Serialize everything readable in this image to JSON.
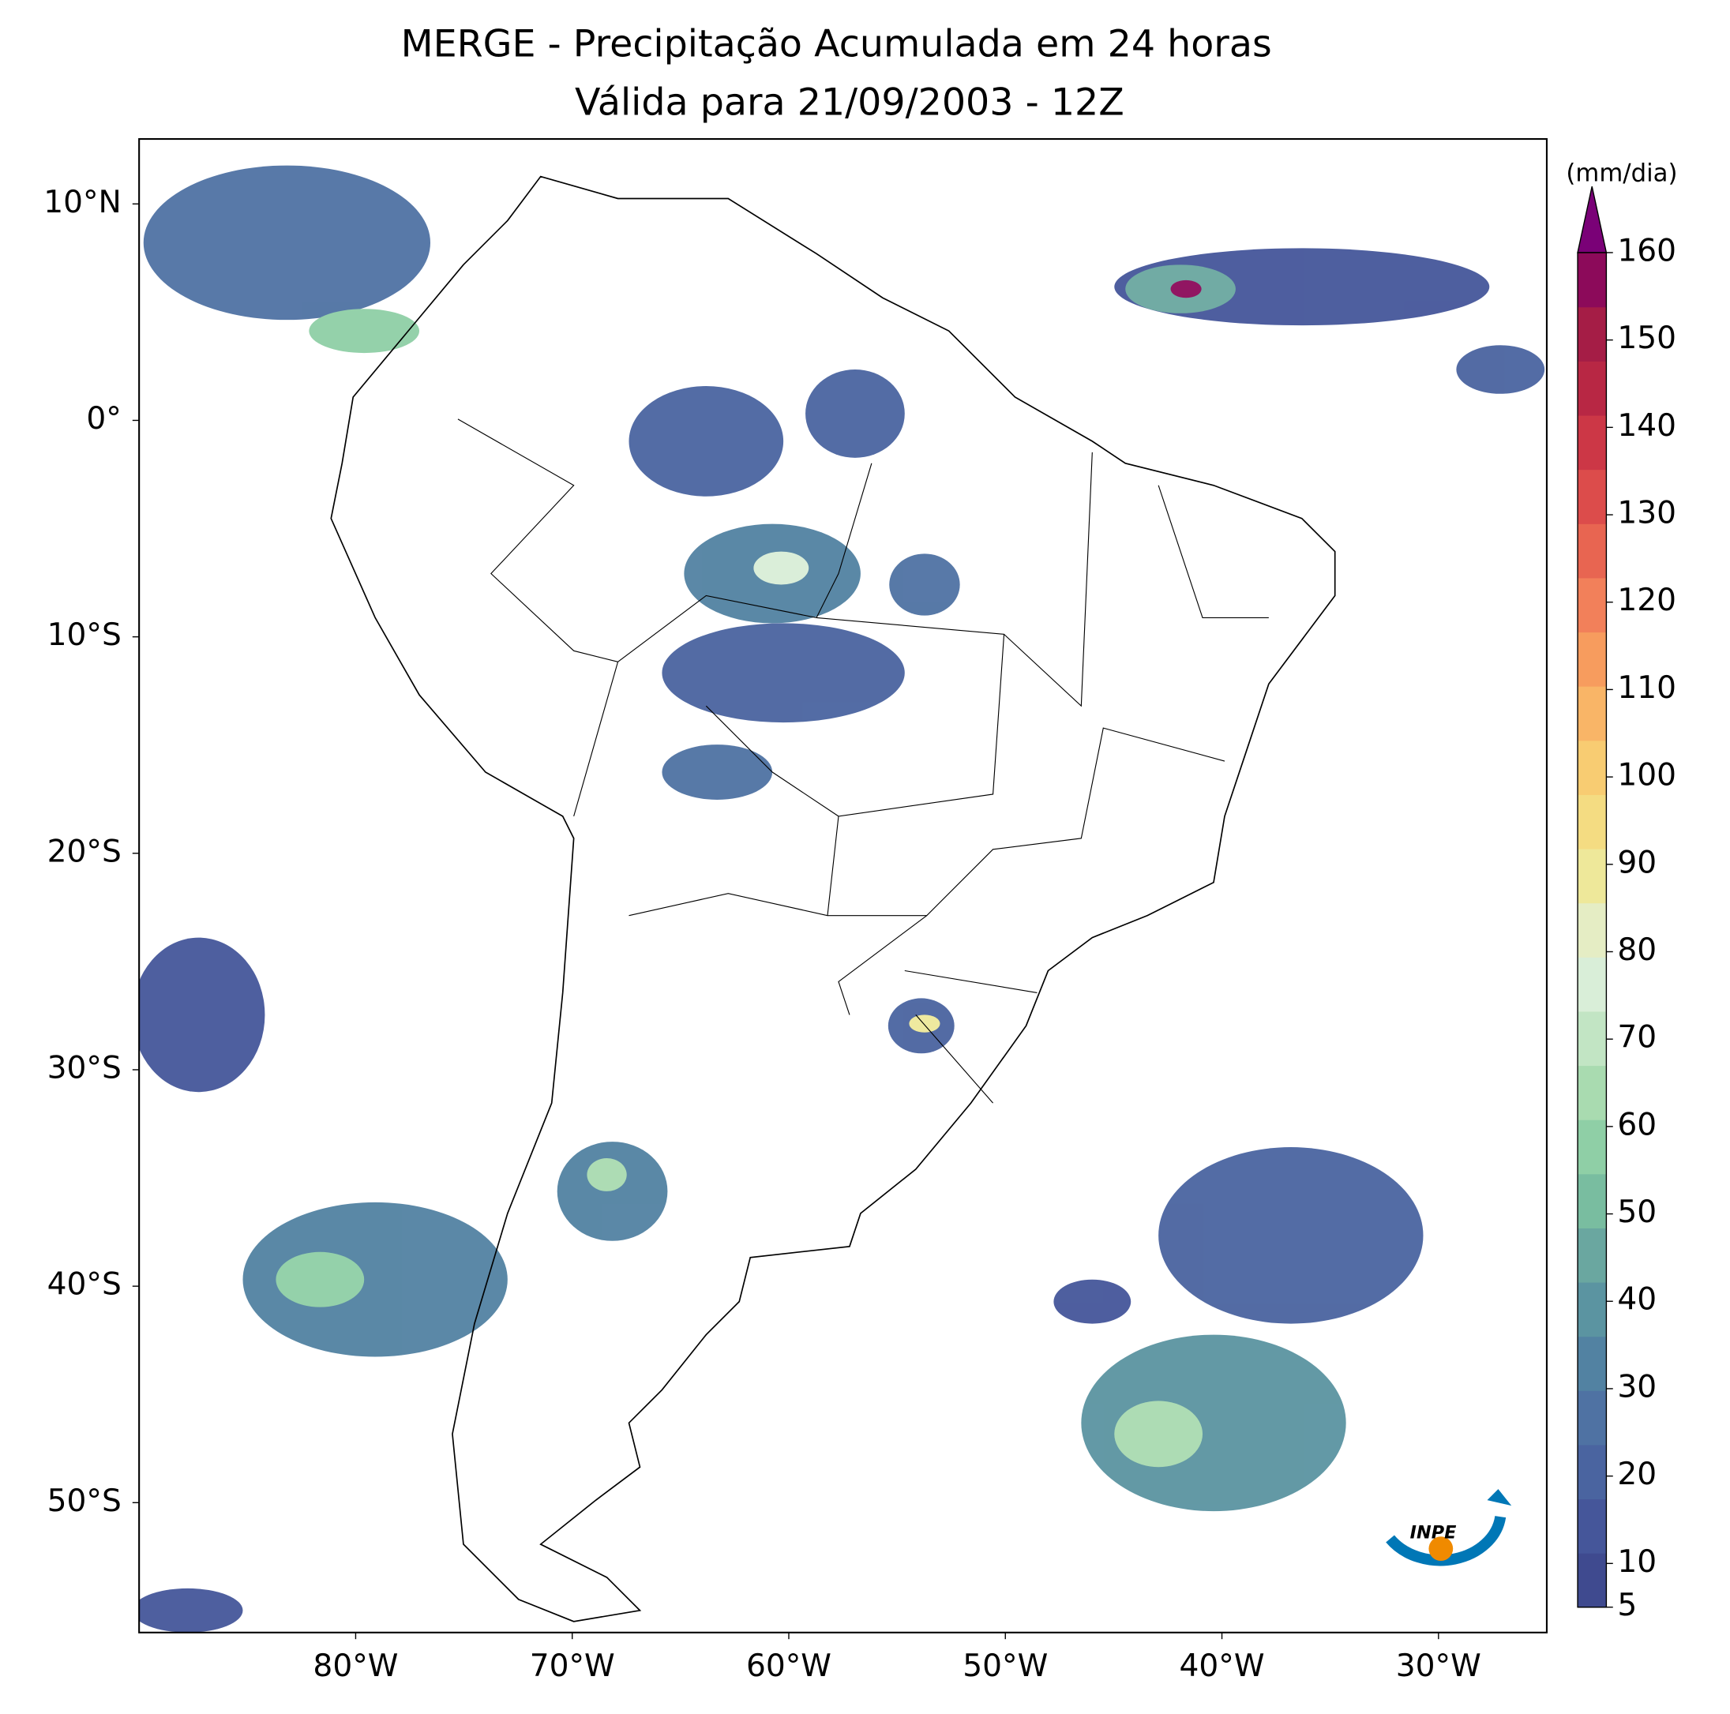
{
  "title": [
    "MERGE - Precipitação Acumulada em 24 horas",
    "Válida para 21/09/2003 - 12Z"
  ],
  "map": {
    "lon_range": [
      -90,
      -25
    ],
    "lat_range": [
      -56,
      13
    ],
    "lon_ticks": [
      {
        "value": -80,
        "label": "80°W"
      },
      {
        "value": -70,
        "label": "70°W"
      },
      {
        "value": -60,
        "label": "60°W"
      },
      {
        "value": -50,
        "label": "50°W"
      },
      {
        "value": -40,
        "label": "40°W"
      },
      {
        "value": -30,
        "label": "30°W"
      }
    ],
    "lat_ticks": [
      {
        "value": 10,
        "label": "10°N"
      },
      {
        "value": 0,
        "label": "0°"
      },
      {
        "value": -10,
        "label": "10°S"
      },
      {
        "value": -20,
        "label": "20°S"
      },
      {
        "value": -30,
        "label": "30°S"
      },
      {
        "value": -40,
        "label": "40°S"
      },
      {
        "value": -50,
        "label": "50°S"
      }
    ]
  },
  "colorbar": {
    "label": "(mm/dia)",
    "range": [
      5,
      160
    ],
    "ticks": [
      5,
      10,
      20,
      30,
      40,
      50,
      60,
      70,
      80,
      90,
      100,
      110,
      120,
      130,
      140,
      150,
      160
    ],
    "colors": [
      "#3f4a8f",
      "#45569a",
      "#4a64a0",
      "#4f72a3",
      "#5282a2",
      "#5b94a1",
      "#6aa7a0",
      "#79bda0",
      "#8fcfa6",
      "#a9dbb0",
      "#c2e5c4",
      "#d9eed8",
      "#e5edc4",
      "#eee89a",
      "#f4dc82",
      "#f8cc72",
      "#f9b567",
      "#f79c5e",
      "#f2805a",
      "#e86551",
      "#dc4c4b",
      "#cc3746",
      "#b82744",
      "#a51d46",
      "#8c0a5a"
    ],
    "over_color": "#7a0177"
  },
  "logo": {
    "text": "INPE"
  }
}
